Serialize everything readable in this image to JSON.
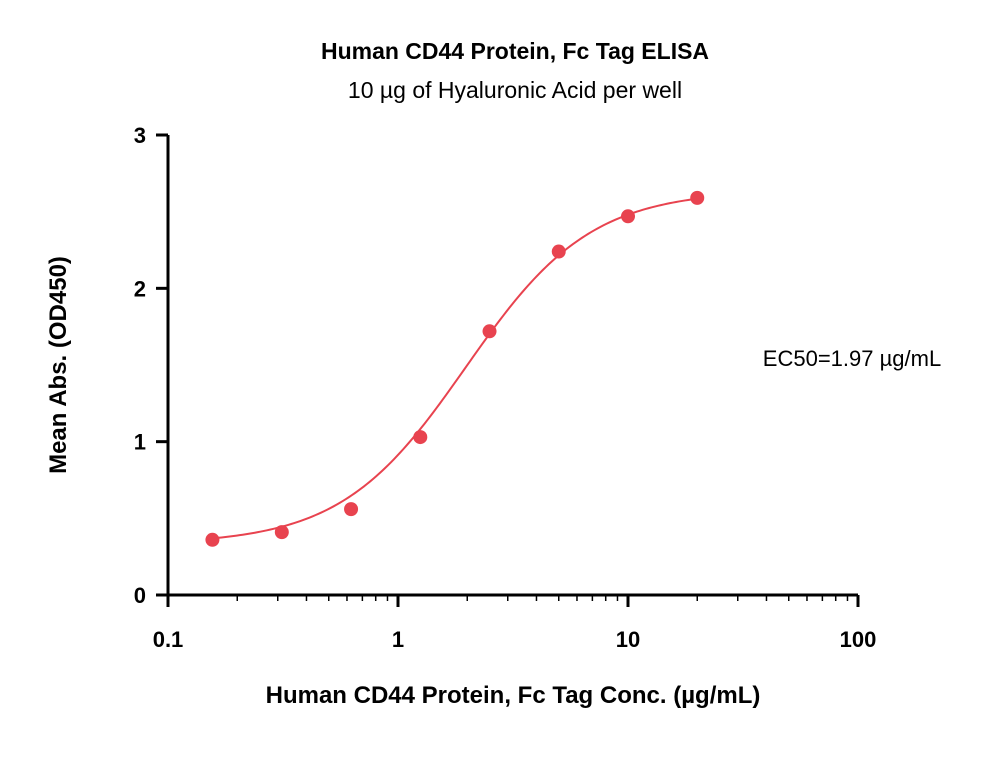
{
  "chart_data": {
    "type": "scatter",
    "title": "Human CD44 Protein, Fc Tag ELISA",
    "subtitle": "10 µg of Hyaluronic Acid per well",
    "xlabel": "Human CD44 Protein, Fc Tag Conc. (µg/mL)",
    "ylabel": "Mean Abs. (OD450)",
    "xscale": "log",
    "xlim": [
      0.1,
      100
    ],
    "ylim": [
      0,
      3
    ],
    "xticks": [
      0.1,
      1,
      10,
      100
    ],
    "xtick_labels": [
      "0.1",
      "1",
      "10",
      "100"
    ],
    "yticks": [
      0,
      1,
      2,
      3
    ],
    "ytick_labels": [
      "0",
      "1",
      "2",
      "3"
    ],
    "grid": false,
    "color": "#e8434f",
    "series": [
      {
        "x": [
          0.156,
          0.3125,
          0.625,
          1.25,
          2.5,
          5,
          10,
          20
        ],
        "y": [
          0.36,
          0.41,
          0.56,
          1.03,
          1.72,
          2.24,
          2.47,
          2.59
        ],
        "fit_curve": "4PL"
      }
    ],
    "annotation": "EC50=1.97 µg/mL"
  }
}
